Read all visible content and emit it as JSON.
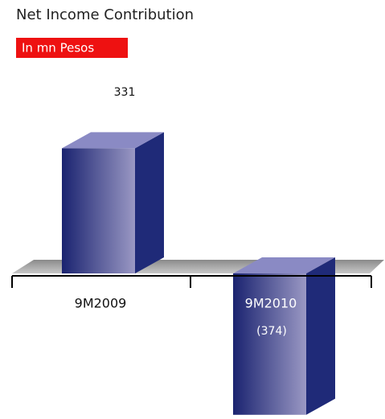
{
  "chart_data": {
    "type": "bar3d",
    "title": "Net Income Contribution",
    "subtitle": "In mn Pesos",
    "categories": [
      "9M2009",
      "9M2010"
    ],
    "values": [
      331,
      -374
    ],
    "value_labels": [
      "331",
      "(374)"
    ],
    "color": "#1f2a78"
  }
}
